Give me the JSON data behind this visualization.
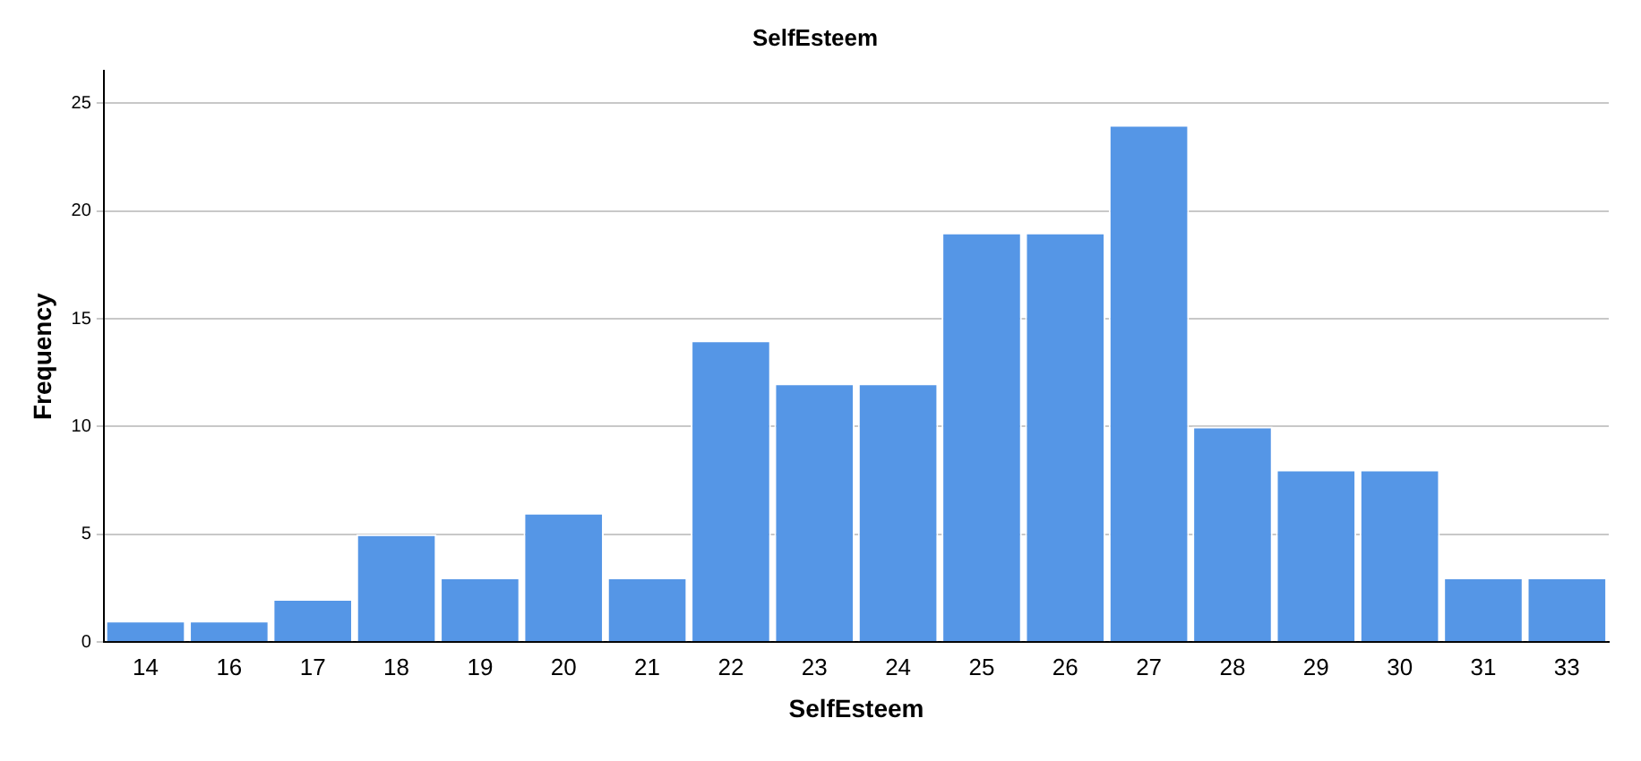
{
  "chart_data": {
    "type": "bar",
    "title": "SelfEsteem",
    "xlabel": "SelfEsteem",
    "ylabel": "Frequency",
    "categories": [
      "14",
      "16",
      "17",
      "18",
      "19",
      "20",
      "21",
      "22",
      "23",
      "24",
      "25",
      "26",
      "27",
      "28",
      "29",
      "30",
      "31",
      "33"
    ],
    "values": [
      1,
      1,
      2,
      5,
      3,
      6,
      3,
      14,
      12,
      12,
      19,
      19,
      24,
      10,
      8,
      8,
      3,
      3
    ],
    "color": "#5596e6",
    "ylim": [
      0,
      26.5
    ],
    "yticks": [
      0,
      5,
      10,
      15,
      20,
      25
    ],
    "grid": "y",
    "legend": false
  }
}
